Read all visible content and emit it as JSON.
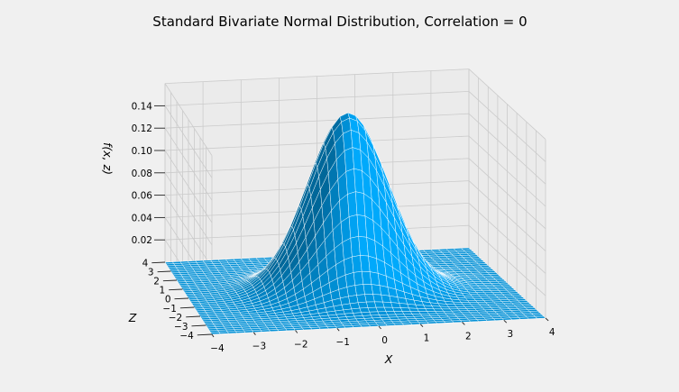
{
  "chart_data": {
    "type": "surface3d",
    "title": "Standard Bivariate Normal Distribution, Correlation = 0",
    "xlabel": "X",
    "ylabel": "Z",
    "zlabel": "f(x, z)",
    "x_ticks": [
      "−4",
      "−3",
      "−2",
      "−1",
      "0",
      "1",
      "2",
      "3",
      "4"
    ],
    "y_ticks": [
      "−4",
      "−3",
      "−2",
      "−1",
      "0",
      "1",
      "2",
      "3",
      "4"
    ],
    "z_ticks": [
      "0.02",
      "0.04",
      "0.06",
      "0.08",
      "0.10",
      "0.12",
      "0.14"
    ],
    "x_range": [
      -4,
      4
    ],
    "y_range": [
      -4,
      4
    ],
    "z_range": [
      0,
      0.16
    ],
    "correlation": 0,
    "peak_value": 0.159,
    "grid": true,
    "surface_color": "#008fd5",
    "edge_color": "#ffffff",
    "background": "#f0f0f0",
    "pane_color": "#ebebeb"
  }
}
